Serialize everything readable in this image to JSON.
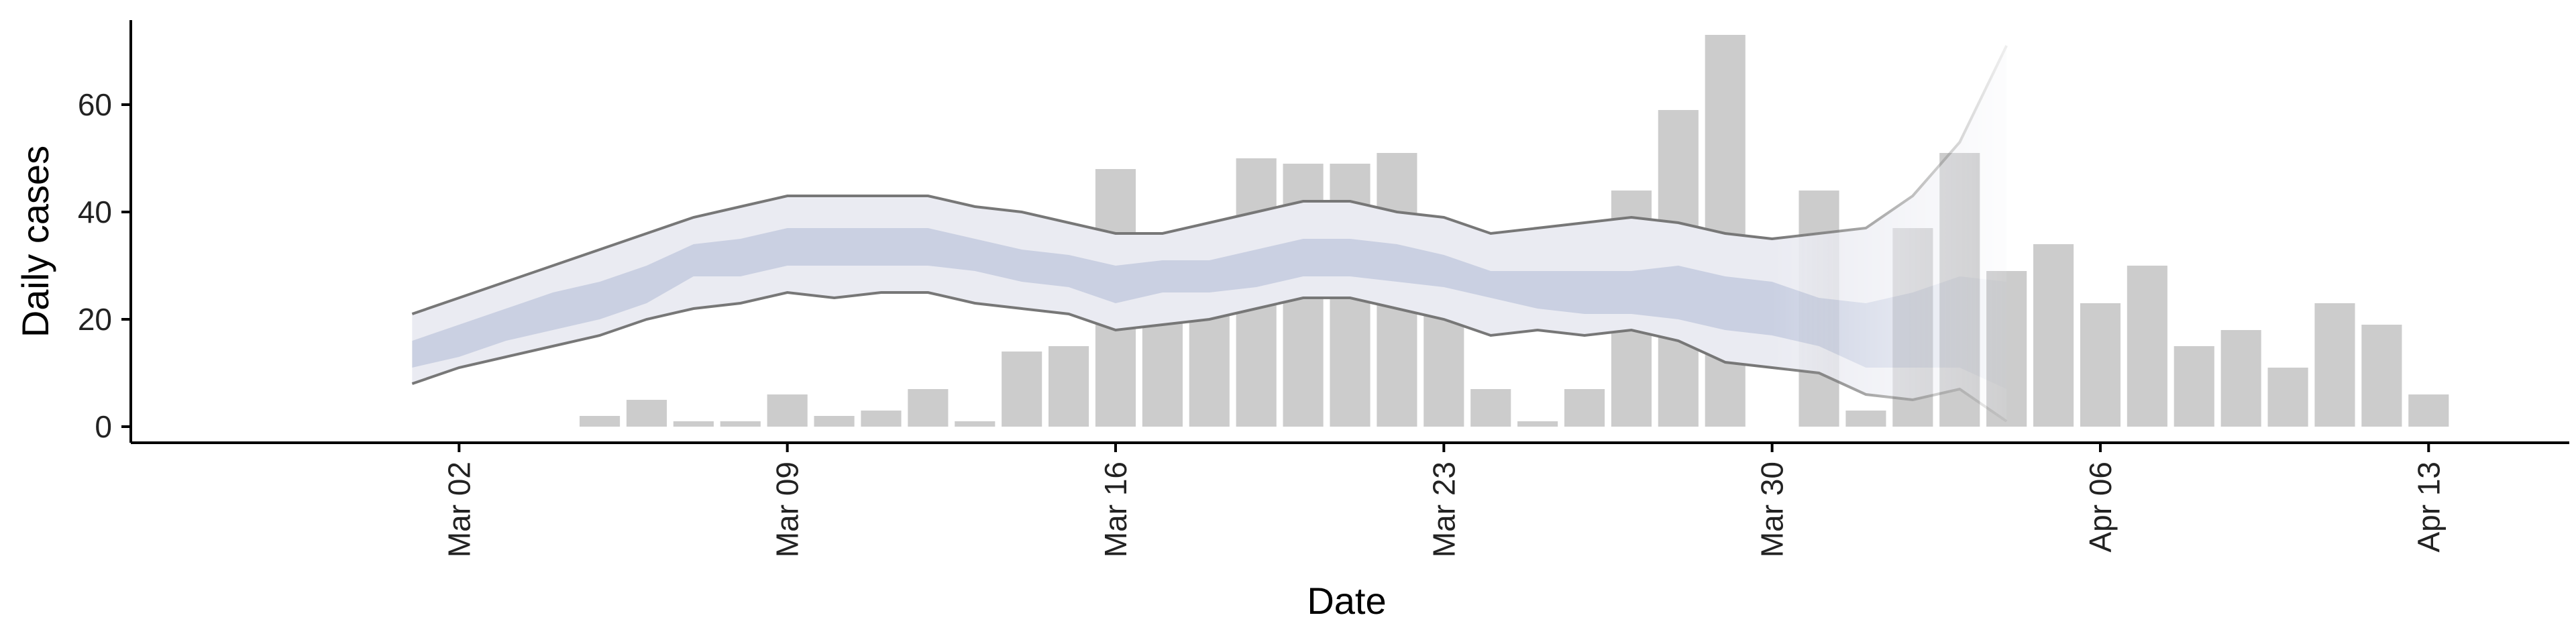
{
  "chart_data": {
    "type": "bar",
    "title": "",
    "xlabel": "Date",
    "ylabel": "Daily cases",
    "xlim": [
      "2020-02-24",
      "2020-04-16"
    ],
    "ylim": [
      -3,
      77
    ],
    "x_ticks": [
      "Mar 02",
      "Mar 09",
      "Mar 16",
      "Mar 23",
      "Mar 30",
      "Apr 06",
      "Apr 13"
    ],
    "y_ticks": [
      0,
      20,
      40,
      60
    ],
    "grid": false,
    "legend": "none",
    "bars": {
      "color": "#cccccc",
      "dates": [
        "2020-03-05",
        "2020-03-06",
        "2020-03-07",
        "2020-03-08",
        "2020-03-09",
        "2020-03-10",
        "2020-03-11",
        "2020-03-12",
        "2020-03-13",
        "2020-03-14",
        "2020-03-15",
        "2020-03-16",
        "2020-03-17",
        "2020-03-18",
        "2020-03-19",
        "2020-03-20",
        "2020-03-21",
        "2020-03-22",
        "2020-03-23",
        "2020-03-24",
        "2020-03-25",
        "2020-03-26",
        "2020-03-27",
        "2020-03-28",
        "2020-03-29",
        "2020-03-30",
        "2020-03-31",
        "2020-04-01",
        "2020-04-02",
        "2020-04-03",
        "2020-04-04",
        "2020-04-05",
        "2020-04-06",
        "2020-04-07",
        "2020-04-08",
        "2020-04-09",
        "2020-04-10",
        "2020-04-11",
        "2020-04-12",
        "2020-04-13"
      ],
      "values": [
        2,
        5,
        1,
        1,
        6,
        2,
        3,
        7,
        1,
        14,
        15,
        48,
        31,
        29,
        50,
        49,
        49,
        51,
        29,
        7,
        1,
        7,
        44,
        59,
        73,
        0,
        44,
        3,
        37,
        51,
        29,
        34,
        23,
        30,
        15,
        18,
        11,
        23,
        19,
        6
      ]
    },
    "estimate": {
      "dates": [
        "2020-03-01",
        "2020-03-02",
        "2020-03-03",
        "2020-03-04",
        "2020-03-05",
        "2020-03-06",
        "2020-03-07",
        "2020-03-08",
        "2020-03-09",
        "2020-03-10",
        "2020-03-11",
        "2020-03-12",
        "2020-03-13",
        "2020-03-14",
        "2020-03-15",
        "2020-03-16",
        "2020-03-17",
        "2020-03-18",
        "2020-03-19",
        "2020-03-20",
        "2020-03-21",
        "2020-03-22",
        "2020-03-23",
        "2020-03-24",
        "2020-03-25",
        "2020-03-26",
        "2020-03-27",
        "2020-03-28",
        "2020-03-29",
        "2020-03-30",
        "2020-03-31",
        "2020-04-01",
        "2020-04-02",
        "2020-04-03",
        "2020-04-04"
      ],
      "upper_90": [
        21,
        24,
        27,
        30,
        33,
        36,
        39,
        41,
        43,
        43,
        43,
        43,
        41,
        40,
        38,
        36,
        36,
        38,
        40,
        42,
        42,
        40,
        39,
        36,
        37,
        38,
        39,
        38,
        36,
        35,
        36,
        37,
        43,
        53,
        71
      ],
      "upper_50": [
        16,
        19,
        22,
        25,
        27,
        30,
        34,
        35,
        37,
        37,
        37,
        37,
        35,
        33,
        32,
        30,
        31,
        31,
        33,
        35,
        35,
        34,
        32,
        29,
        29,
        29,
        29,
        30,
        28,
        27,
        24,
        23,
        25,
        28,
        27
      ],
      "lower_50": [
        11,
        13,
        16,
        18,
        20,
        23,
        28,
        28,
        30,
        30,
        30,
        30,
        29,
        27,
        26,
        23,
        25,
        25,
        26,
        28,
        28,
        27,
        26,
        24,
        22,
        21,
        21,
        20,
        18,
        17,
        15,
        11,
        11,
        11,
        7
      ],
      "lower_90": [
        8,
        11,
        13,
        15,
        17,
        20,
        22,
        23,
        25,
        24,
        25,
        25,
        23,
        22,
        21,
        18,
        19,
        20,
        22,
        24,
        24,
        22,
        20,
        17,
        18,
        17,
        18,
        16,
        12,
        11,
        10,
        6,
        5,
        7,
        1
      ],
      "outer_band_color": "#eaebf2",
      "inner_band_color": "#c7cde0",
      "line_color": "#777777",
      "fade_from": "2020-03-30"
    }
  }
}
